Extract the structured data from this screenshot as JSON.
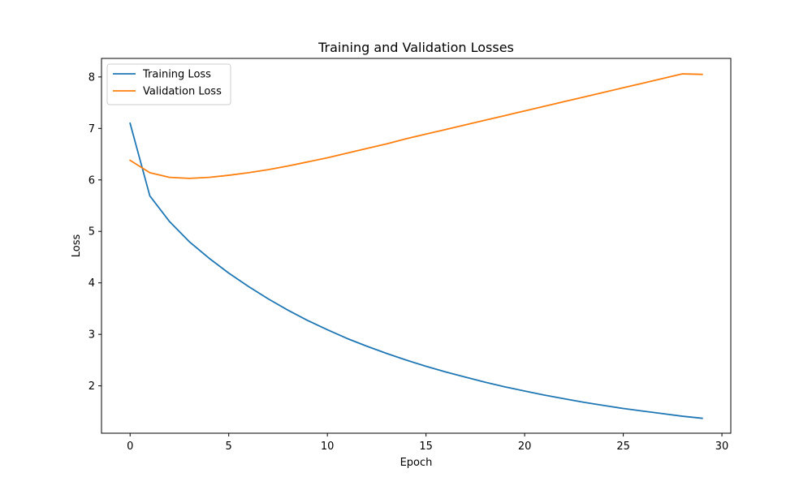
{
  "chart_data": {
    "type": "line",
    "title": "Training and Validation Losses",
    "xlabel": "Epoch",
    "ylabel": "Loss",
    "xlim": [
      -1.45,
      30.45
    ],
    "ylim": [
      1.08,
      8.36
    ],
    "xticks": [
      0,
      5,
      10,
      15,
      20,
      25,
      30
    ],
    "yticks": [
      2,
      3,
      4,
      5,
      6,
      7,
      8
    ],
    "grid": false,
    "legend_position": "upper left",
    "x": [
      0,
      1,
      2,
      3,
      4,
      5,
      6,
      7,
      8,
      9,
      10,
      11,
      12,
      13,
      14,
      15,
      16,
      17,
      18,
      19,
      20,
      21,
      22,
      23,
      24,
      25,
      26,
      27,
      28,
      29
    ],
    "series": [
      {
        "name": "Training Loss",
        "color": "#1f77b4",
        "values": [
          7.1,
          5.69,
          5.19,
          4.8,
          4.48,
          4.19,
          3.93,
          3.69,
          3.47,
          3.27,
          3.09,
          2.92,
          2.77,
          2.63,
          2.5,
          2.38,
          2.27,
          2.17,
          2.07,
          1.98,
          1.9,
          1.82,
          1.75,
          1.68,
          1.62,
          1.56,
          1.51,
          1.46,
          1.41,
          1.37
        ]
      },
      {
        "name": "Validation Loss",
        "color": "#ff7f0e",
        "values": [
          6.38,
          6.14,
          6.05,
          6.03,
          6.05,
          6.09,
          6.14,
          6.2,
          6.27,
          6.35,
          6.43,
          6.52,
          6.61,
          6.7,
          6.8,
          6.89,
          6.98,
          7.07,
          7.16,
          7.25,
          7.34,
          7.43,
          7.52,
          7.61,
          7.7,
          7.79,
          7.88,
          7.97,
          8.06,
          8.05
        ]
      }
    ]
  }
}
